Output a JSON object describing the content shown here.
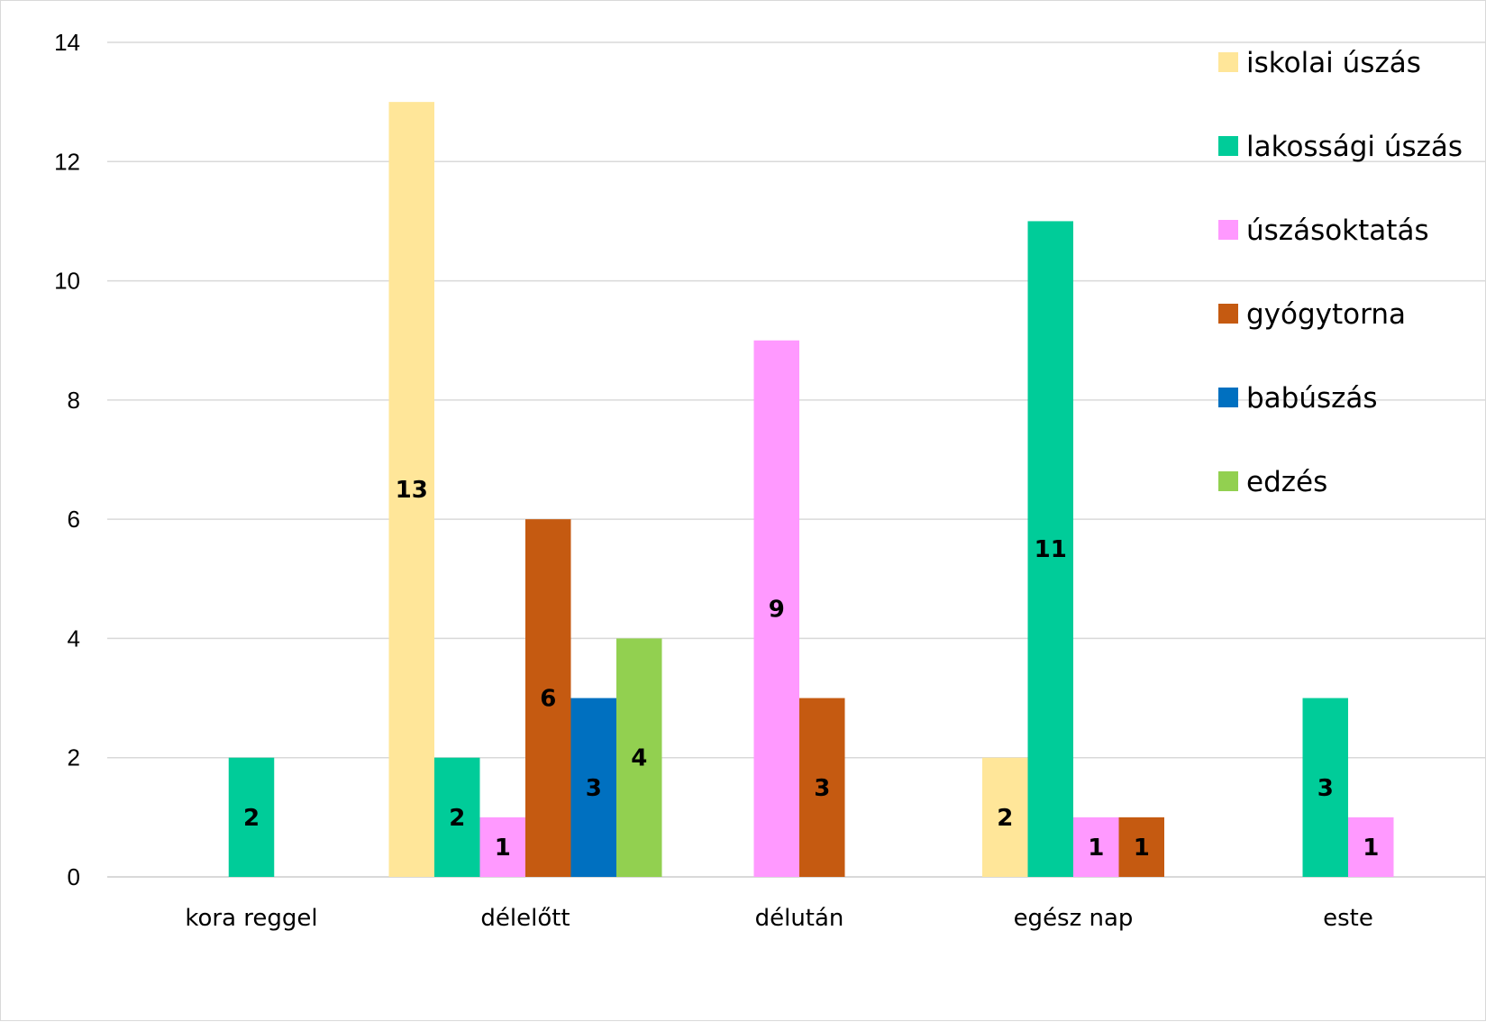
{
  "chart_data": {
    "type": "bar",
    "title": "",
    "xlabel": "",
    "ylabel": "",
    "ylim": [
      0,
      14
    ],
    "yticks": [
      0,
      2,
      4,
      6,
      8,
      10,
      12,
      14
    ],
    "grid": true,
    "legend_position": "top-right",
    "categories": [
      "kora reggel",
      "délelőtt",
      "délután",
      "egész nap",
      "este"
    ],
    "series": [
      {
        "name": "iskolai úszás",
        "color": "#FFE699",
        "values": [
          null,
          13,
          null,
          2,
          null
        ]
      },
      {
        "name": "lakossági úszás",
        "color": "#00CC99",
        "values": [
          2,
          2,
          null,
          11,
          3
        ]
      },
      {
        "name": "úszásoktatás",
        "color": "#FF99FF",
        "values": [
          null,
          1,
          9,
          1,
          1
        ]
      },
      {
        "name": "gyógytorna",
        "color": "#C55A11",
        "values": [
          null,
          6,
          3,
          1,
          null
        ]
      },
      {
        "name": "babúszás",
        "color": "#0070C0",
        "values": [
          null,
          3,
          null,
          null,
          null
        ]
      },
      {
        "name": "edzés",
        "color": "#92D050",
        "values": [
          null,
          4,
          null,
          null,
          null
        ]
      }
    ]
  }
}
